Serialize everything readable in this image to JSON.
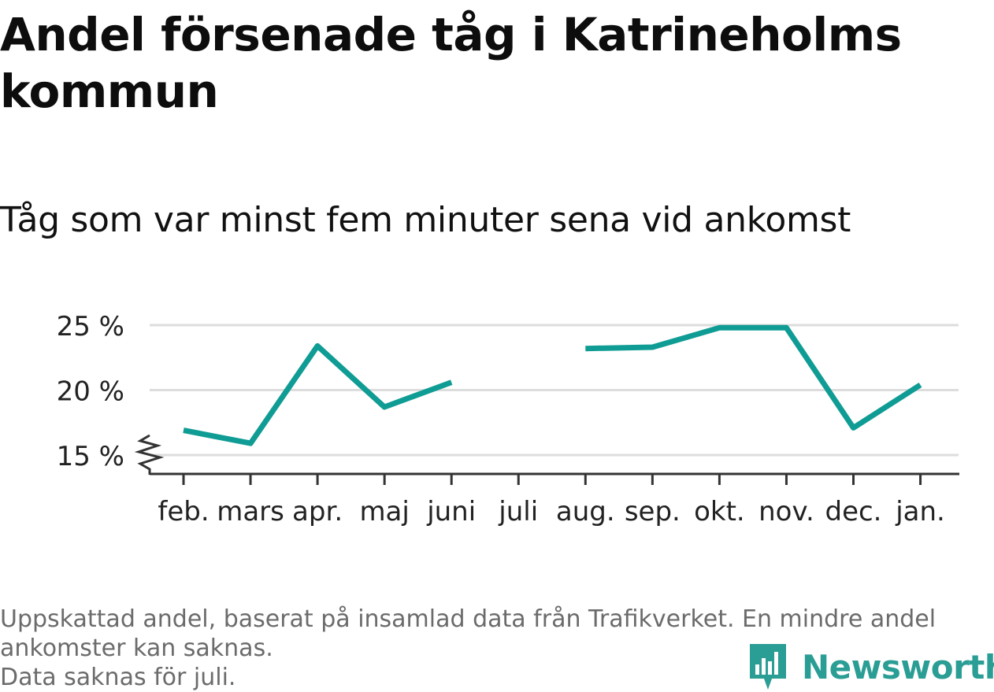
{
  "title": "Andel försenade tåg i Katrineholms kommun",
  "subtitle": "Tåg som var minst fem minuter sena vid ankomst",
  "footnote": {
    "line1": "Uppskattad andel, baserat på insamlad data från Trafikverket. En mindre andel",
    "line2": "ankomster kan saknas.",
    "line3": "Data saknas för juli."
  },
  "brand": {
    "name": "Newsworthy",
    "color": "#2a9d95",
    "icon": "chart-bubble-icon"
  },
  "colors": {
    "line": "#0f9c94",
    "grid": "#dddddd",
    "axis": "#333333",
    "text": "#222222"
  },
  "chart_data": {
    "type": "line",
    "categories": [
      "feb.",
      "mars",
      "apr.",
      "maj",
      "juni",
      "juli",
      "aug.",
      "sep.",
      "okt.",
      "nov.",
      "dec.",
      "jan."
    ],
    "series": [
      {
        "values": [
          16.9,
          15.9,
          23.4,
          18.7,
          20.6,
          null,
          23.2,
          23.3,
          24.8,
          24.8,
          17.1,
          20.4
        ]
      }
    ],
    "y_ticks": [
      15,
      20,
      25
    ],
    "y_tick_labels": [
      "15 %",
      "20 %",
      "25 %"
    ],
    "ylim": [
      15,
      25
    ],
    "y_axis_break": true,
    "grid": true,
    "legend": false
  }
}
